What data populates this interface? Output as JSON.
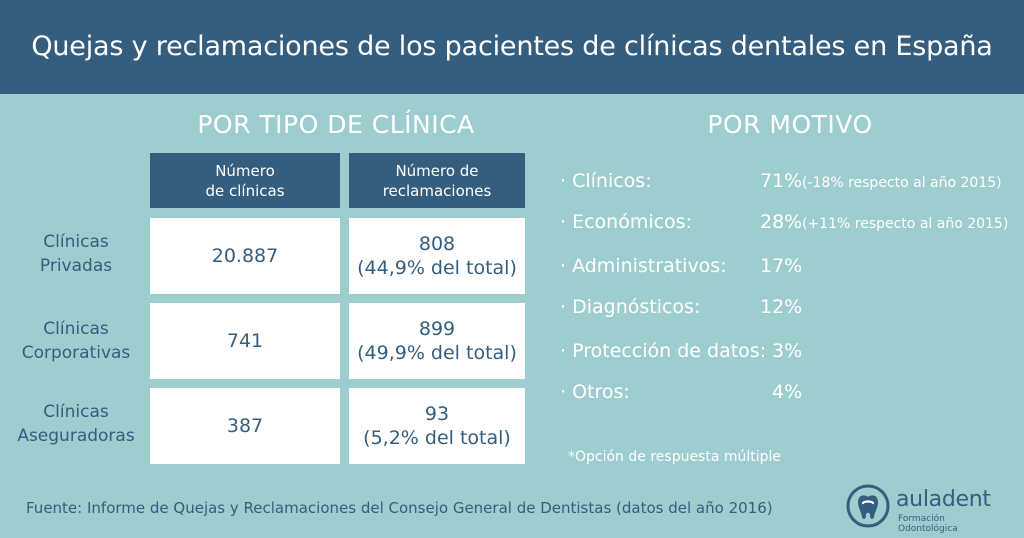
{
  "title": "Quejas y reclamaciones de los pacientes de clínicas dentales en España",
  "colors": {
    "background": "#9ECDD0",
    "header": "#355E7E",
    "text_dark": "#355E7E",
    "cell_bg": "#ffffff"
  },
  "chart_data": [
    {
      "type": "table",
      "title": "POR TIPO DE CLÍNICA",
      "columns": [
        "Número\nde clínicas",
        "Número de\nreclamaciones"
      ],
      "rows": [
        {
          "label": "Clínicas\nPrivadas",
          "clinicas": "20.887",
          "reclamaciones": "808\n(44,9% del total)"
        },
        {
          "label": "Clínicas\nCorporativas",
          "clinicas": "741",
          "reclamaciones": "899\n(49,9% del total)"
        },
        {
          "label": "Clínicas\nAseguradoras",
          "clinicas": "387",
          "reclamaciones": "93\n(5,2% del total)"
        }
      ]
    },
    {
      "type": "table",
      "title": "POR MOTIVO",
      "rows": [
        {
          "label": "· Clínicos:",
          "value": "71%",
          "note": "(-18% respecto al año 2015)"
        },
        {
          "label": "· Económicos:",
          "value": "28%",
          "note": "(+11% respecto al año 2015)"
        },
        {
          "label": "· Administrativos:",
          "value": "17%",
          "note": ""
        },
        {
          "label": "· Diagnósticos:",
          "value": "12%",
          "note": ""
        },
        {
          "label": "· Protección de datos:",
          "value": "3%",
          "note": ""
        },
        {
          "label": "· Otros:",
          "value": "4%",
          "note": ""
        }
      ],
      "footnote": "*Opción de respuesta múltiple"
    }
  ],
  "source": "Fuente: Informe de Quejas y Reclamaciones del Consejo General de Dentistas (datos del año 2016)",
  "logo": {
    "name": "auladent",
    "tagline": "Formación Odontológica",
    "icon": "tooth-logo-icon"
  }
}
